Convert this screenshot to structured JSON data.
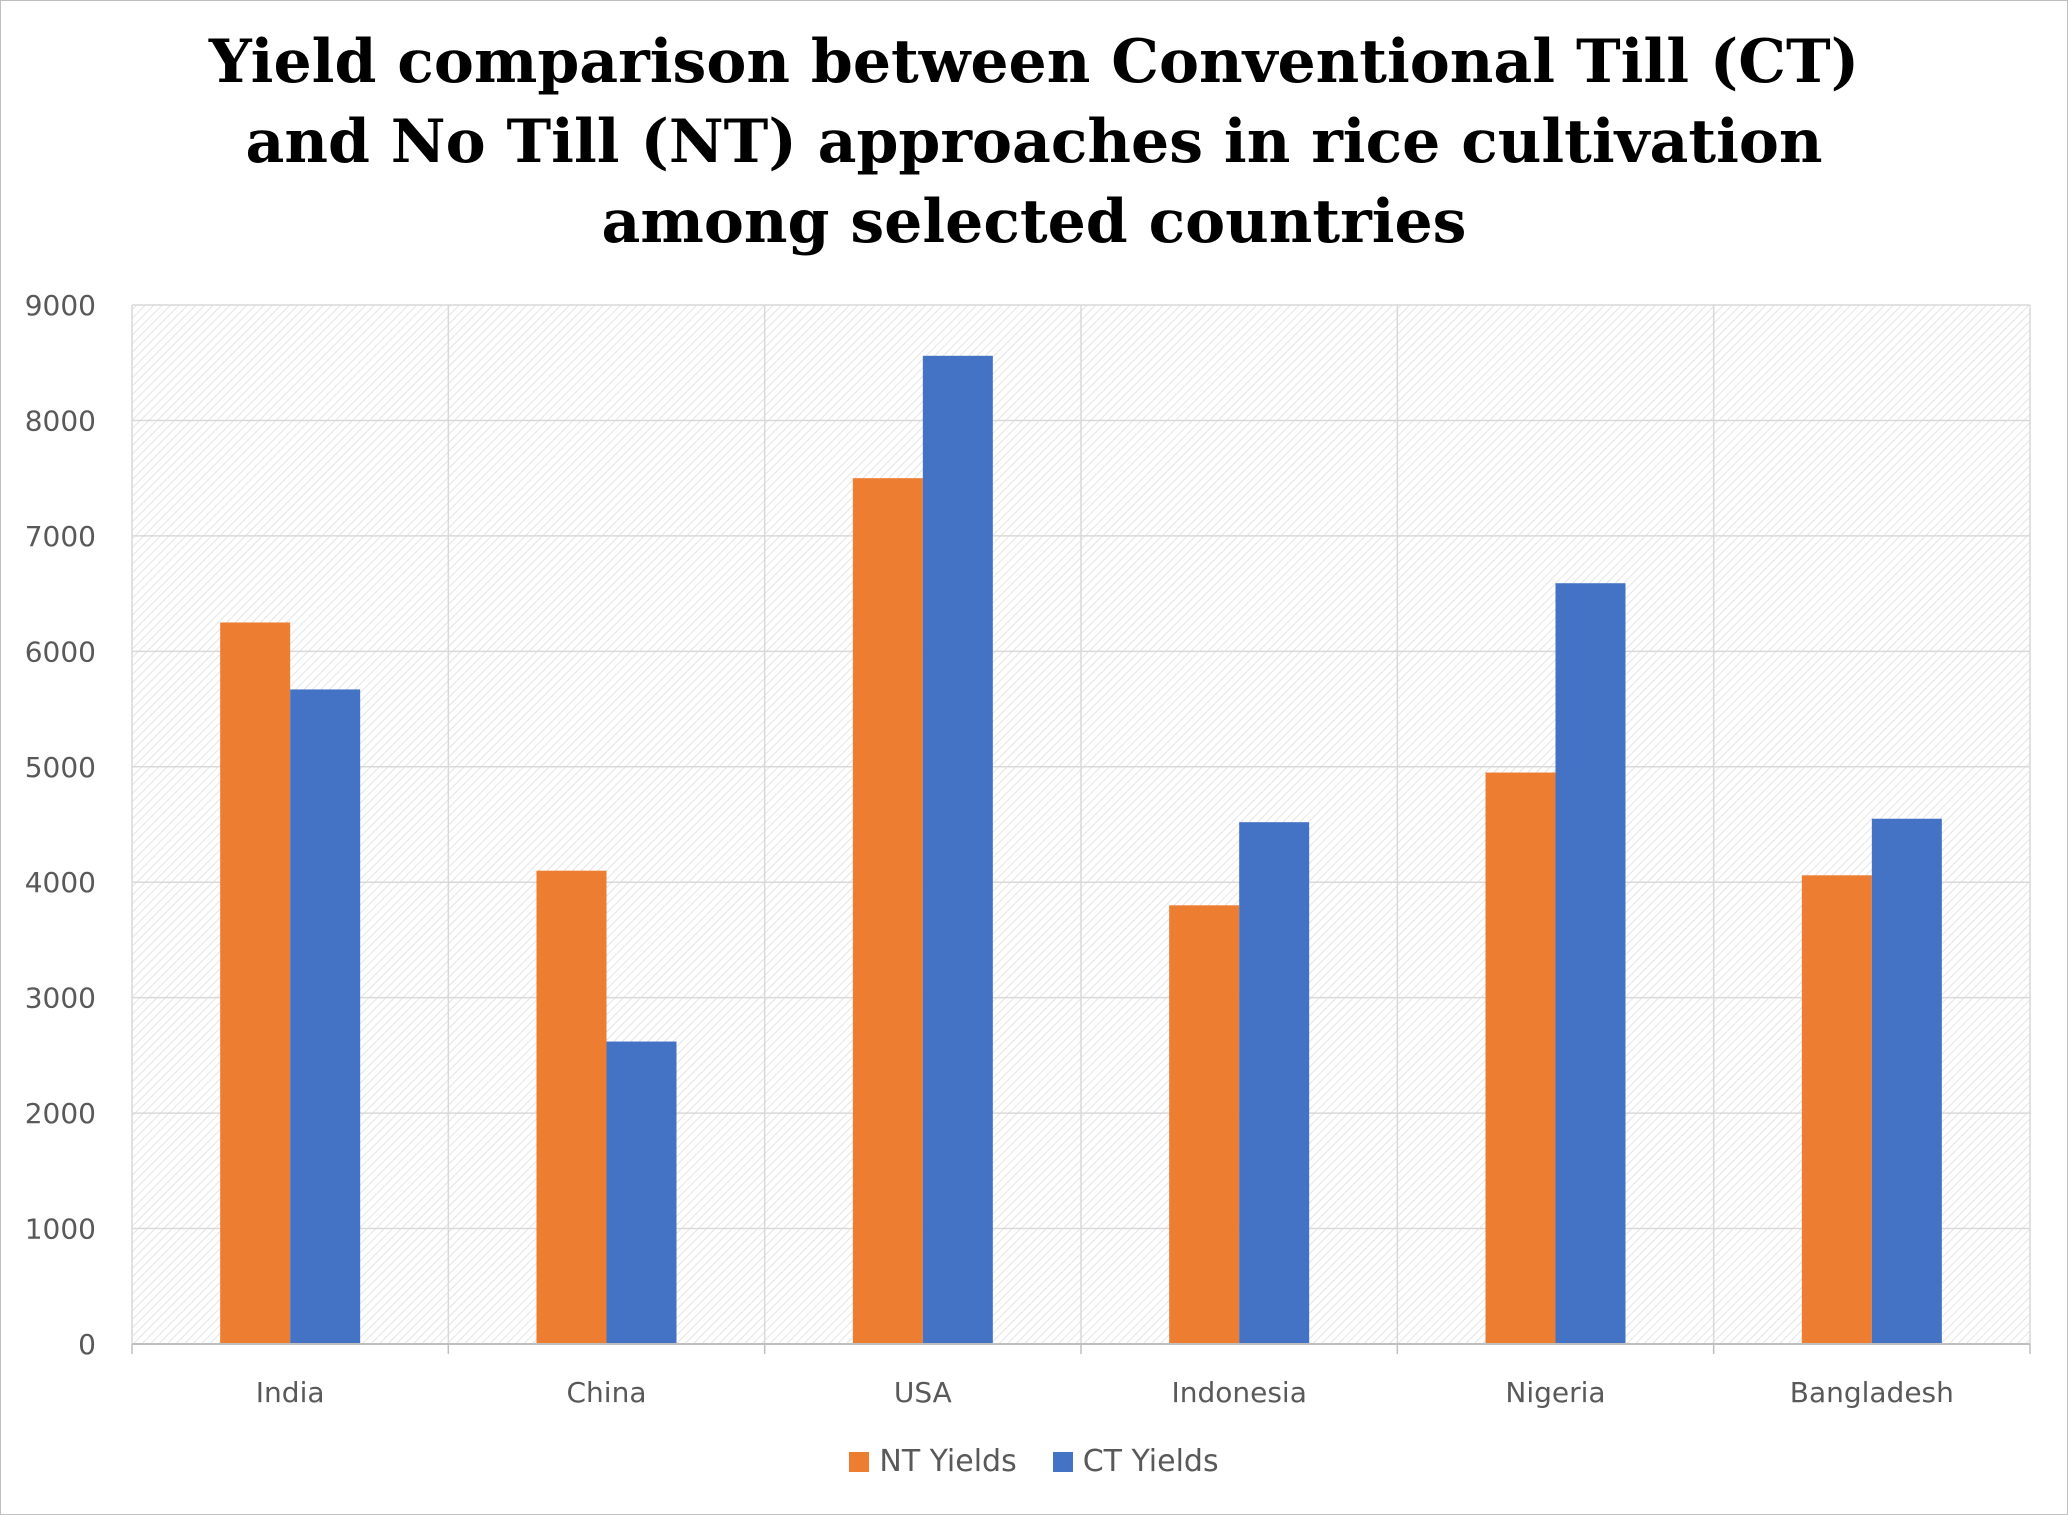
{
  "chart_data": {
    "type": "bar",
    "title_lines": [
      "Yield comparison between Conventional Till (CT)",
      "and No Till (NT)  approaches in rice cultivation",
      "among selected countries"
    ],
    "categories": [
      "India",
      "China",
      "USA",
      "Indonesia",
      "Nigeria",
      "Bangladesh"
    ],
    "series": [
      {
        "name": "NT Yields",
        "color": "#ED7D31",
        "values": [
          6250,
          4100,
          7500,
          3800,
          4950,
          4060
        ]
      },
      {
        "name": "CT Yields",
        "color": "#4472C4",
        "values": [
          5670,
          2620,
          8560,
          4520,
          6590,
          4550
        ]
      }
    ],
    "xlabel": "",
    "ylabel": "",
    "ylim": [
      0,
      9000
    ],
    "yticks": [
      0,
      1000,
      2000,
      3000,
      4000,
      5000,
      6000,
      7000,
      8000,
      9000
    ],
    "grid": true,
    "legend_position": "bottom"
  }
}
